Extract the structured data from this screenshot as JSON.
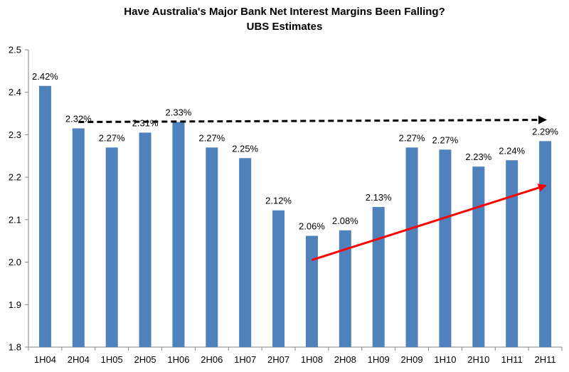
{
  "chart_data": {
    "type": "bar",
    "title": "Have Australia's Major Bank Net Interest Margins Been Falling?",
    "subtitle": "UBS Estimates",
    "categories": [
      "1H04",
      "2H04",
      "1H05",
      "2H05",
      "1H06",
      "2H06",
      "1H07",
      "2H07",
      "1H08",
      "2H08",
      "1H09",
      "2H09",
      "1H10",
      "2H10",
      "1H11",
      "2H11"
    ],
    "values": [
      2.415,
      2.315,
      2.27,
      2.305,
      2.33,
      2.27,
      2.245,
      2.122,
      2.062,
      2.075,
      2.13,
      2.27,
      2.265,
      2.225,
      2.24,
      2.285
    ],
    "data_labels": [
      "2.42%",
      "2.32%",
      "2.27%",
      "2.31%",
      "2.33%",
      "2.27%",
      "2.25%",
      "2.12%",
      "2.06%",
      "2.08%",
      "2.13%",
      "2.27%",
      "2.27%",
      "2.23%",
      "2.24%",
      "2.29%"
    ],
    "ylim": [
      1.8,
      2.5
    ],
    "yticks": [
      "1.8",
      "1.9",
      "2.0",
      "2.1",
      "2.2",
      "2.3",
      "2.4",
      "2.5"
    ],
    "xlabel": "",
    "ylabel": "",
    "grid": false,
    "colors": {
      "bar": "#4f81bd",
      "trend_up": "#ff0000",
      "trend_flat": "#000000",
      "axis": "#868686"
    },
    "annotations": [
      {
        "kind": "dashed-arrow",
        "color": "#000000",
        "from": {
          "x": "2H04",
          "y": 2.33
        },
        "to": {
          "x": "2H11",
          "y": 2.335
        }
      },
      {
        "kind": "solid-arrow",
        "color": "#ff0000",
        "from": {
          "x": "1H08",
          "y": 2.005
        },
        "to": {
          "x": "2H11",
          "y": 2.18
        }
      }
    ]
  }
}
